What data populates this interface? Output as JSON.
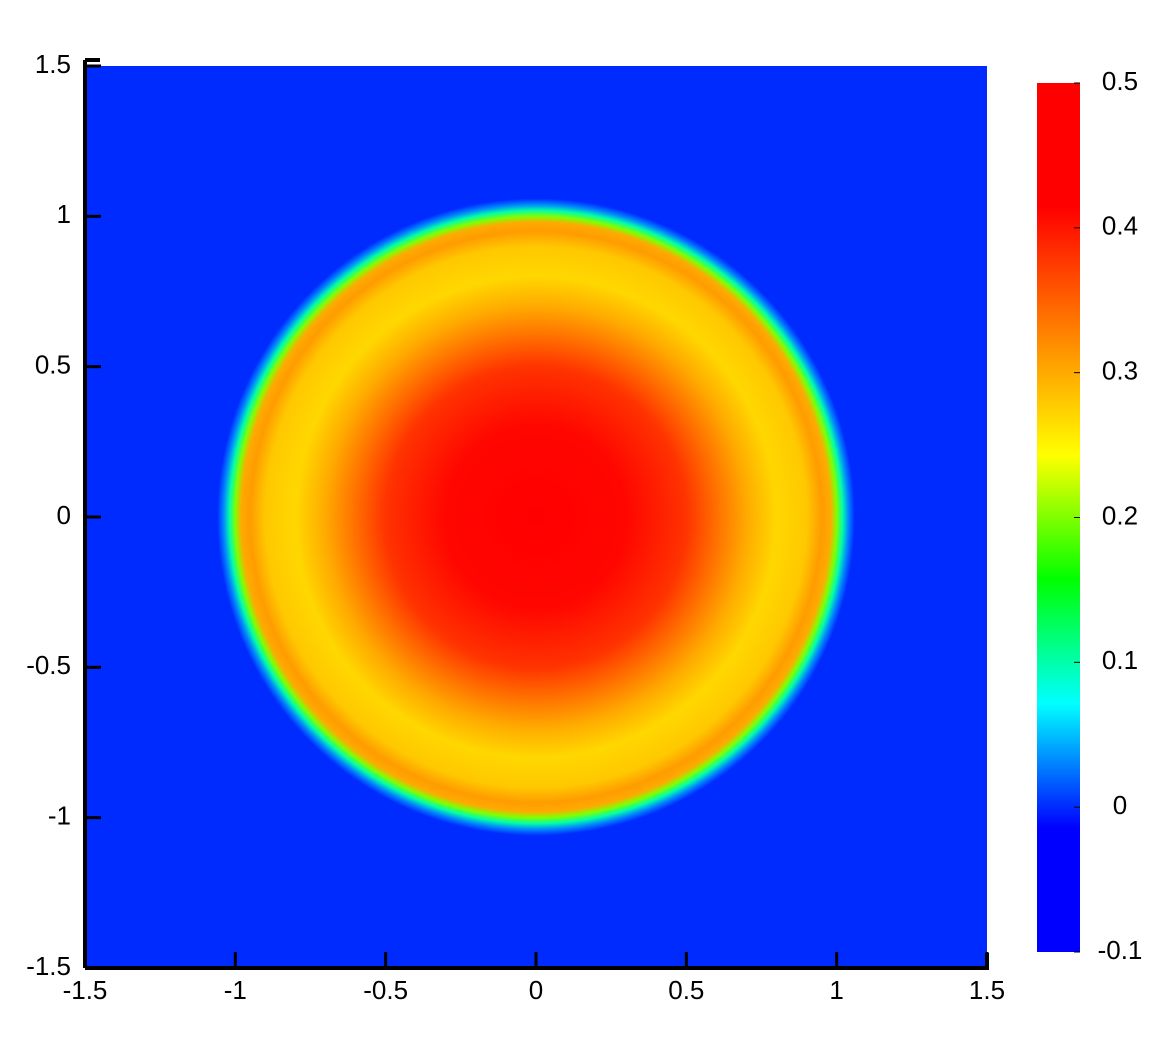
{
  "chart_data": {
    "type": "heatmap",
    "xlim": [
      -1.5,
      1.5
    ],
    "ylim": [
      -1.5,
      1.5
    ],
    "xticks": [
      -1.5,
      -1,
      -0.5,
      0,
      0.5,
      1,
      1.5
    ],
    "yticks": [
      -1.5,
      -1,
      -0.5,
      0,
      0.5,
      1,
      1.5
    ],
    "r": [
      0,
      0.3,
      0.5,
      0.6,
      0.7,
      0.8,
      0.9,
      0.95,
      0.98,
      1.0,
      1.02,
      1.04,
      1.06
    ],
    "values": [
      0.42,
      0.41,
      0.38,
      0.34,
      0.3,
      0.27,
      0.28,
      0.31,
      0.3,
      0.2,
      0.1,
      0.03,
      0
    ],
    "zlim": [
      -0.1,
      0.5
    ],
    "zticks": [
      -0.1,
      0,
      0.1,
      0.2,
      0.3,
      0.4,
      0.5
    ],
    "colors": [
      "#0000ff",
      "#0000ff",
      "#00ffff",
      "#00ff00",
      "#ffff00",
      "#ff8000",
      "#ff0000",
      "#ff0000"
    ]
  }
}
